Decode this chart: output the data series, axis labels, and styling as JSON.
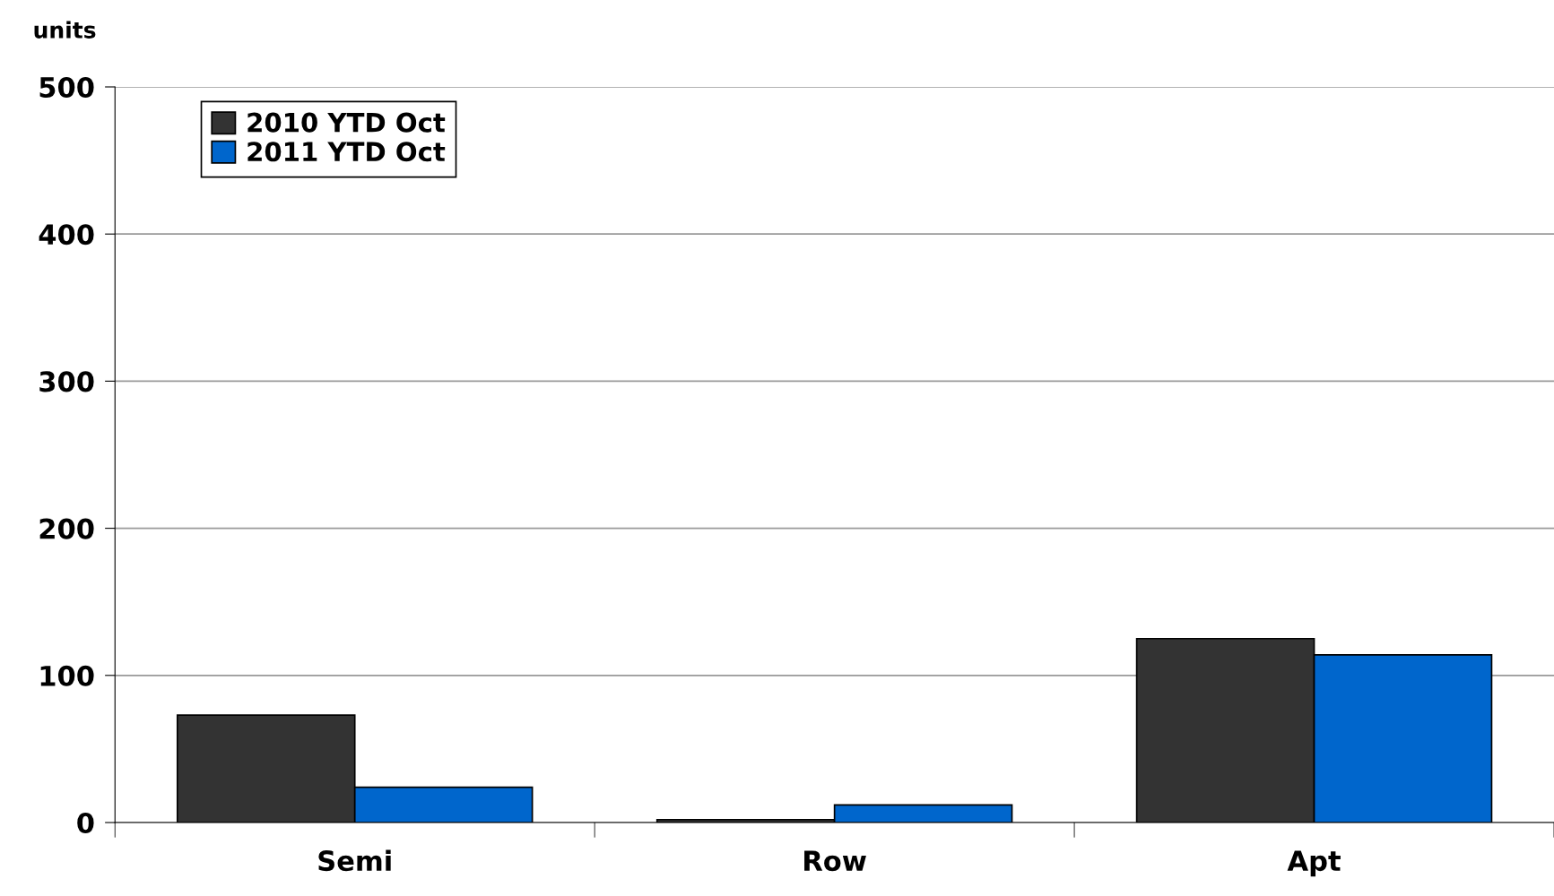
{
  "chart_data": {
    "type": "bar",
    "ylabel": "units",
    "categories": [
      "Semi",
      "Row",
      "Apt"
    ],
    "series": [
      {
        "name": "2010 YTD Oct",
        "color": "#333333",
        "values": [
          73,
          2,
          125
        ]
      },
      {
        "name": "2011 YTD Oct",
        "color": "#0066cc",
        "values": [
          24,
          12,
          114
        ]
      }
    ],
    "ylim": [
      0,
      500
    ],
    "yticks": [
      0,
      100,
      200,
      300,
      400,
      500
    ],
    "grid": "y",
    "legend": "top left"
  }
}
